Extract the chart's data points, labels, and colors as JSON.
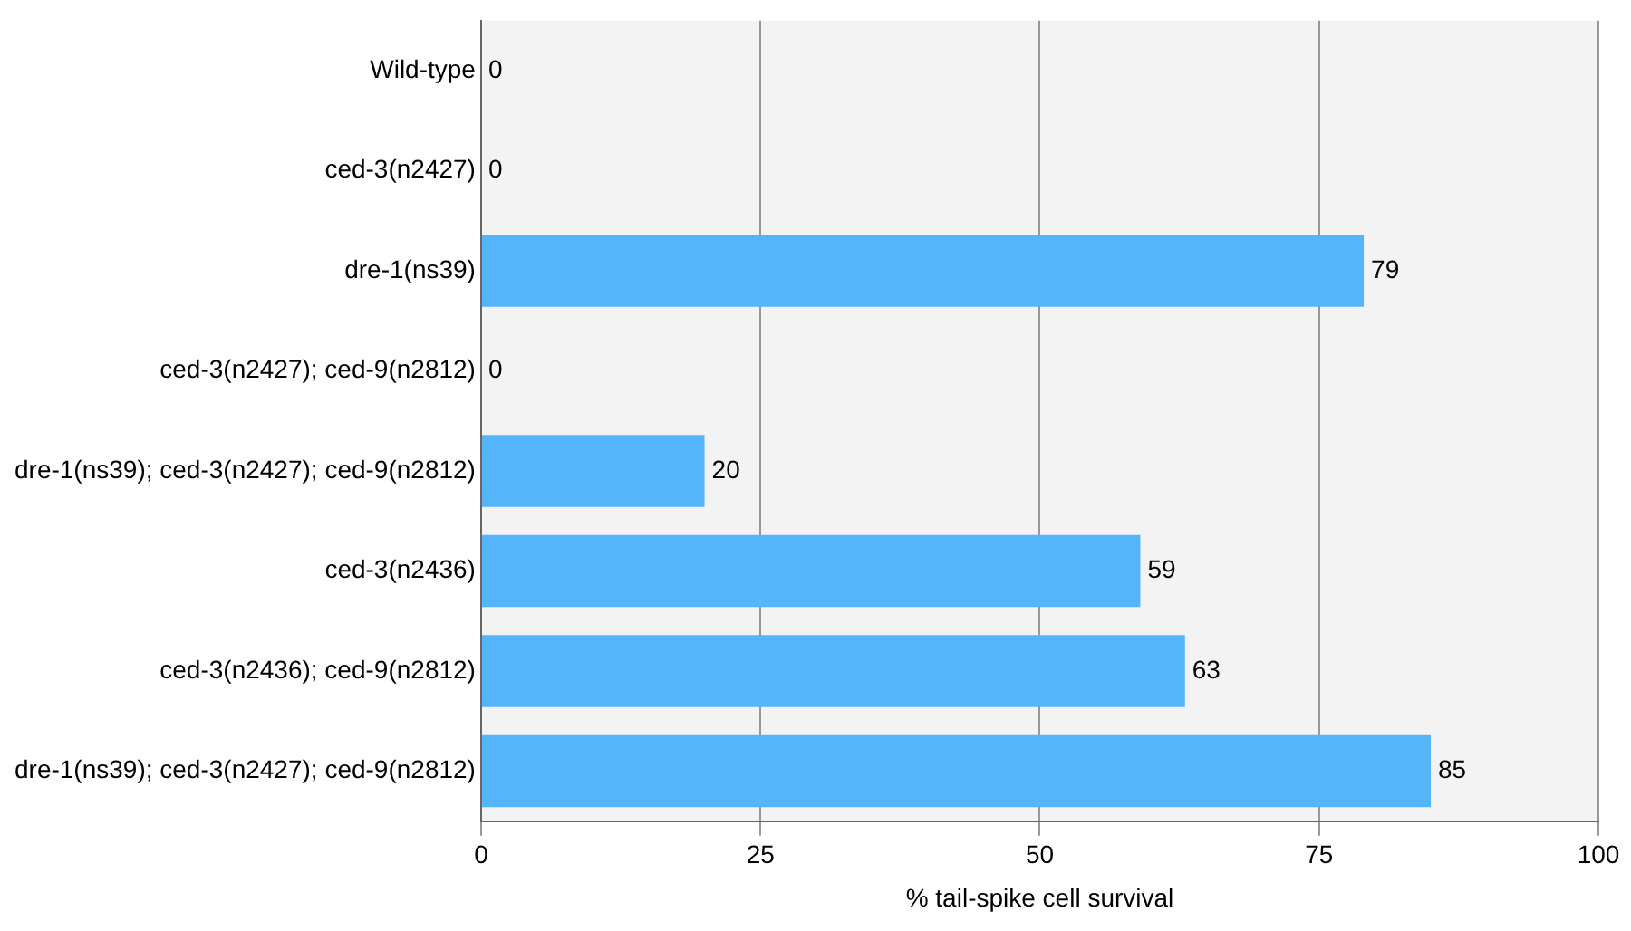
{
  "chart_data": {
    "type": "bar",
    "orientation": "horizontal",
    "xlabel": "% tail-spike cell survival",
    "categories": [
      "Wild-type",
      "ced-3(n2427)",
      "dre-1(ns39)",
      "ced-3(n2427); ced-9(n2812)",
      "dre-1(ns39); ced-3(n2427); ced-9(n2812)",
      "ced-3(n2436)",
      "ced-3(n2436); ced-9(n2812)",
      "dre-1(ns39); ced-3(n2427); ced-9(n2812)"
    ],
    "values": [
      0,
      0,
      79,
      0,
      20,
      59,
      63,
      85
    ],
    "color": "#55b5fa",
    "xlim": [
      0,
      100
    ],
    "xticks": [
      0,
      25,
      50,
      75,
      100
    ],
    "grid": "x",
    "legend": false,
    "data_labels": true
  }
}
